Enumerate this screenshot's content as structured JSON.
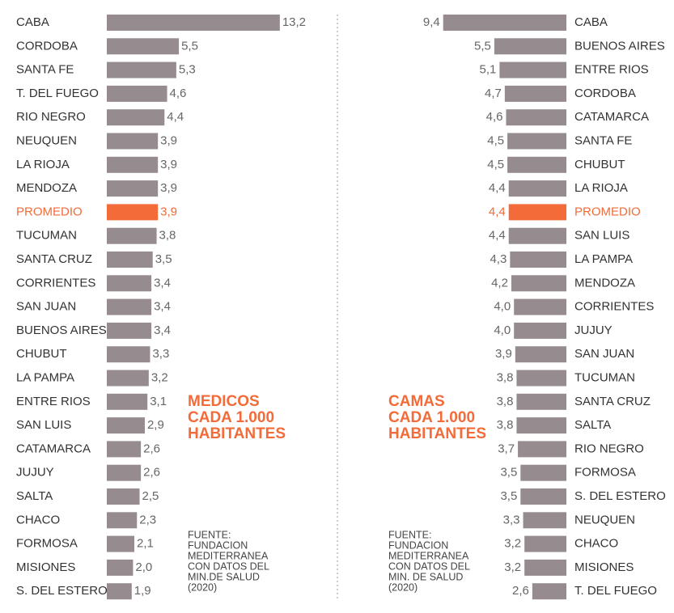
{
  "chart_data": [
    {
      "type": "bar",
      "title": [
        "MEDICOS",
        "CADA 1.000",
        "HABITANTES"
      ],
      "source": [
        "FUENTE:",
        " FUNDACION",
        "MEDITERRANEA",
        "CON DATOS DEL",
        "MIN.DE SALUD",
        "(2020)"
      ],
      "categories": [
        "CABA",
        "CORDOBA",
        "SANTA FE",
        "T. DEL FUEGO",
        "RIO NEGRO",
        "NEUQUEN",
        "LA RIOJA",
        "MENDOZA",
        "PROMEDIO",
        "TUCUMAN",
        "SANTA CRUZ",
        "CORRIENTES",
        "SAN JUAN",
        "BUENOS AIRES",
        "CHUBUT",
        "LA PAMPA",
        "ENTRE RIOS",
        "SAN LUIS",
        "CATAMARCA",
        "JUJUY",
        "SALTA",
        "CHACO",
        "FORMOSA",
        "MISIONES",
        "S. DEL ESTERO"
      ],
      "values": [
        13.2,
        5.5,
        5.3,
        4.6,
        4.4,
        3.9,
        3.9,
        3.9,
        3.9,
        3.8,
        3.5,
        3.4,
        3.4,
        3.4,
        3.3,
        3.2,
        3.1,
        2.9,
        2.6,
        2.6,
        2.5,
        2.3,
        2.1,
        2.0,
        1.9
      ],
      "value_labels": [
        "13,2",
        "5,5",
        "5,3",
        "4,6",
        "4,4",
        "3,9",
        "3,9",
        "3,9",
        "3,9",
        "3,8",
        "3,5",
        "3,4",
        "3,4",
        "3,4",
        "3,3",
        "3,2",
        "3,1",
        "2,9",
        "2,6",
        "2,6",
        "2,5",
        "2,3",
        "2,1",
        "2,0",
        "1,9"
      ],
      "color": "#968b8e",
      "highlight_color": "#f26b38",
      "highlight": "PROMEDIO"
    },
    {
      "type": "bar",
      "title": [
        "CAMAS",
        "CADA 1.000",
        "HABITANTES"
      ],
      "source": [
        "FUENTE:",
        "FUNDACION",
        "MEDITERRANEA",
        "CON DATOS DEL",
        "MIN. DE SALUD",
        "(2020)"
      ],
      "categories": [
        "CABA",
        "BUENOS AIRES",
        "ENTRE RIOS",
        "CORDOBA",
        "CATAMARCA",
        "SANTA FE",
        "CHUBUT",
        "LA RIOJA",
        "PROMEDIO",
        "SAN LUIS",
        "LA PAMPA",
        "MENDOZA",
        "CORRIENTES",
        "JUJUY",
        "SAN JUAN",
        "TUCUMAN",
        "SANTA CRUZ",
        "SALTA",
        "RIO NEGRO",
        "FORMOSA",
        "S. DEL ESTERO",
        "NEUQUEN",
        "CHACO",
        "MISIONES",
        "T. DEL FUEGO"
      ],
      "values": [
        9.4,
        5.5,
        5.1,
        4.7,
        4.6,
        4.5,
        4.5,
        4.4,
        4.4,
        4.4,
        4.3,
        4.2,
        4.0,
        4.0,
        3.9,
        3.8,
        3.8,
        3.8,
        3.7,
        3.5,
        3.5,
        3.3,
        3.2,
        3.2,
        2.6
      ],
      "value_labels": [
        "9,4",
        "5,5",
        "5,1",
        "4,7",
        "4,6",
        "4,5",
        "4,5",
        "4,4",
        "4,4",
        "4,4",
        "4,3",
        "4,2",
        "4,0",
        "4,0",
        "3,9",
        "3,8",
        "3,8",
        "3,8",
        "3,7",
        "3,5",
        "3,5",
        "3,3",
        "3,2",
        "3,2",
        "2,6"
      ],
      "color": "#968b8e",
      "highlight_color": "#f26b38",
      "highlight": "PROMEDIO"
    }
  ]
}
